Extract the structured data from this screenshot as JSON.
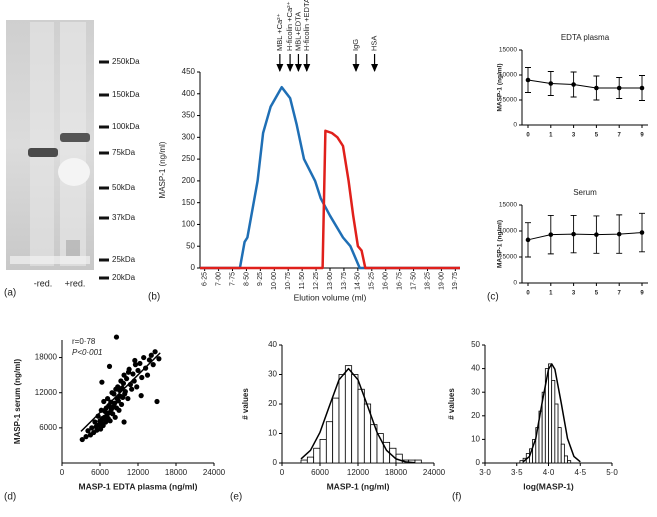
{
  "chart_data": [
    {
      "type": "gel",
      "panel_label": "(a)",
      "markers": [
        "250kDa",
        "150kDa",
        "100kDa",
        "75kDa",
        "50kDa",
        "37kDa",
        "25kDa",
        "20kDa"
      ],
      "lanes": [
        "-red.",
        "+red."
      ]
    },
    {
      "type": "line",
      "panel_label": "(b)",
      "y_label": "MASP-1 (ng/ml)",
      "x_label": "Elution volume (ml)",
      "xlim": [
        6,
        20
      ],
      "ylim": [
        0,
        450
      ],
      "xticks": [
        {
          "value": 6.25,
          "label": "6·25"
        },
        {
          "value": 7.0,
          "label": "7·00"
        },
        {
          "value": 7.75,
          "label": "7·75"
        },
        {
          "value": 8.5,
          "label": "8·50"
        },
        {
          "value": 9.25,
          "label": "9·25"
        },
        {
          "value": 10.0,
          "label": "10·00"
        },
        {
          "value": 10.75,
          "label": "10·75"
        },
        {
          "value": 11.5,
          "label": "11·50"
        },
        {
          "value": 12.25,
          "label": "12·25"
        },
        {
          "value": 13.0,
          "label": "13·00"
        },
        {
          "value": 13.75,
          "label": "13·75"
        },
        {
          "value": 14.5,
          "label": "14·50"
        },
        {
          "value": 15.25,
          "label": "15·25"
        },
        {
          "value": 16.0,
          "label": "16·00"
        },
        {
          "value": 16.75,
          "label": "16·75"
        },
        {
          "value": 17.5,
          "label": "17·50"
        },
        {
          "value": 18.25,
          "label": "18·25"
        },
        {
          "value": 19.0,
          "label": "19·00"
        },
        {
          "value": 19.75,
          "label": "19·75"
        }
      ],
      "yticks": [
        0,
        50,
        100,
        150,
        200,
        250,
        300,
        350,
        400,
        450
      ],
      "series": [
        {
          "color": "#1f6fb5",
          "x": [
            6,
            8.15,
            8.4,
            8.55,
            9.1,
            9.4,
            9.8,
            10.4,
            10.85,
            11.2,
            11.6,
            12.2,
            12.5,
            13.0,
            13.7,
            14.1,
            14.6,
            20
          ],
          "values": [
            0,
            0,
            60,
            70,
            200,
            310,
            370,
            415,
            390,
            330,
            250,
            200,
            160,
            120,
            70,
            50,
            0,
            0
          ]
        },
        {
          "color": "#e0201b",
          "x": [
            6,
            12.6,
            12.75,
            13.1,
            13.4,
            13.7,
            14.0,
            14.25,
            14.5,
            14.7,
            14.9,
            20
          ],
          "values": [
            0,
            0,
            315,
            310,
            300,
            280,
            200,
            120,
            50,
            40,
            0,
            0
          ]
        }
      ],
      "annotations": [
        {
          "text": "MBL +Ca²⁺",
          "x": 10.3
        },
        {
          "text": "H-ficolin +Ca²⁺",
          "x": 10.85
        },
        {
          "text": "MBL+EDTA",
          "x": 11.3
        },
        {
          "text": "H-ficolin +EDTA",
          "x": 11.75
        },
        {
          "text": "IgG",
          "x": 14.4
        },
        {
          "text": "HSA",
          "x": 15.4
        }
      ]
    },
    {
      "type": "errorbar",
      "title": "EDTA plasma",
      "y_label": "MASP-1 (ng/ml)",
      "categories": [
        "0",
        "1",
        "3",
        "5",
        "7",
        "9"
      ],
      "values": [
        9000,
        8300,
        8100,
        7400,
        7400,
        7400
      ],
      "errors": [
        2500,
        2400,
        2500,
        2400,
        2100,
        2500
      ],
      "ylim": [
        0,
        15000
      ],
      "yticks": [
        0,
        5000,
        10000,
        15000
      ]
    },
    {
      "type": "errorbar",
      "title": "Serum",
      "y_label": "MASP-1 (ng/ml)",
      "panel_label": "(c)",
      "categories": [
        "0",
        "1",
        "3",
        "5",
        "7",
        "9"
      ],
      "values": [
        8300,
        9300,
        9400,
        9300,
        9400,
        9700
      ],
      "errors": [
        3300,
        3700,
        3600,
        3600,
        3700,
        3700
      ],
      "ylim": [
        0,
        15000
      ],
      "yticks": [
        0,
        5000,
        10000,
        15000
      ]
    },
    {
      "type": "scatter",
      "panel_label": "(d)",
      "y_label": "MASP-1 serum (ng/ml)",
      "x_label": "MASP-1 EDTA plasma (ng/ml)",
      "annotations": [
        "r=0·78",
        "P<0·001"
      ],
      "xlim": [
        0,
        24000
      ],
      "ylim": [
        0,
        21000
      ],
      "xticks": [
        0,
        6000,
        12000,
        18000,
        24000
      ],
      "yticks": [
        6000,
        12000,
        18000
      ],
      "x": [
        3200,
        3800,
        4100,
        4500,
        4700,
        5000,
        5200,
        5400,
        5500,
        5700,
        5800,
        6000,
        6100,
        6200,
        6300,
        6400,
        6500,
        6600,
        6700,
        6800,
        6900,
        7000,
        7100,
        7200,
        7300,
        7400,
        7500,
        7600,
        7700,
        7800,
        7900,
        8000,
        8100,
        8200,
        8300,
        8400,
        8500,
        8600,
        8700,
        8800,
        8900,
        9000,
        9100,
        9200,
        9300,
        9400,
        9500,
        9600,
        9700,
        9800,
        9900,
        10000,
        10200,
        10400,
        10600,
        10800,
        11000,
        11200,
        11400,
        11600,
        11800,
        12000,
        12300,
        12600,
        12900,
        13200,
        13500,
        13800,
        14100,
        14400,
        14700,
        15000,
        15300,
        6300,
        7500,
        8600,
        9800,
        10500,
        11500,
        12500
      ],
      "values": [
        4000,
        4500,
        5500,
        4800,
        6000,
        5200,
        7000,
        6200,
        5600,
        8000,
        6500,
        7200,
        5800,
        9000,
        6800,
        7600,
        6400,
        10500,
        7800,
        8800,
        7000,
        9400,
        8200,
        11000,
        7600,
        9800,
        8600,
        7200,
        10400,
        9200,
        12000,
        8400,
        9600,
        11800,
        10200,
        7800,
        12600,
        9400,
        11000,
        13000,
        10600,
        9000,
        12400,
        11400,
        14000,
        10000,
        12800,
        11200,
        13600,
        15000,
        11800,
        12200,
        14400,
        11000,
        16000,
        13400,
        12600,
        15200,
        14000,
        16800,
        13000,
        15800,
        17000,
        14600,
        18000,
        16200,
        15000,
        17600,
        18400,
        16800,
        19000,
        10500,
        17800,
        13800,
        16500,
        21500,
        7000,
        15500,
        17500,
        11500
      ],
      "fit": {
        "x": [
          3000,
          15500
        ],
        "y": [
          5400,
          18800
        ]
      }
    },
    {
      "type": "histogram",
      "panel_label": "(e)",
      "y_label": "# values",
      "x_label": "MASP-1 (ng/ml)",
      "xlim": [
        0,
        24000
      ],
      "ylim": [
        0,
        40
      ],
      "xticks": [
        0,
        6000,
        12000,
        18000,
        24000
      ],
      "yticks": [
        0,
        10,
        20,
        30,
        40
      ],
      "bins": [
        3000,
        4000,
        5000,
        6000,
        7000,
        8000,
        9000,
        10000,
        11000,
        12000,
        13000,
        14000,
        15000,
        16000,
        17000,
        18000,
        19000,
        20000,
        21000,
        22000
      ],
      "values": [
        1,
        2,
        5,
        8,
        14,
        22,
        30,
        33,
        30,
        25,
        20,
        13,
        10,
        7,
        5,
        3,
        1,
        1,
        1
      ],
      "fit": {
        "x": [
          3000,
          4500,
          6000,
          7500,
          9000,
          10500,
          12000,
          13500,
          15000,
          16500,
          18000,
          19500,
          21000
        ],
        "y": [
          1.4,
          4.3,
          10.4,
          19.4,
          28.2,
          32,
          28.2,
          19.4,
          10.4,
          4.3,
          1.4,
          0.36,
          0.07
        ]
      }
    },
    {
      "type": "histogram",
      "panel_label": "(f)",
      "y_label": "# values",
      "x_label": "log(MASP-1)",
      "xlim": [
        3.0,
        5.0
      ],
      "ylim": [
        0,
        50
      ],
      "xticks": [
        {
          "value": 3.0,
          "label": "3·0"
        },
        {
          "value": 3.5,
          "label": "3·5"
        },
        {
          "value": 4.0,
          "label": "4·0"
        },
        {
          "value": 4.5,
          "label": "4·5"
        },
        {
          "value": 5.0,
          "label": "5·0"
        }
      ],
      "yticks": [
        0,
        10,
        20,
        30,
        40,
        50
      ],
      "bins": [
        3.55,
        3.6,
        3.65,
        3.7,
        3.75,
        3.8,
        3.85,
        3.9,
        3.95,
        4.0,
        4.05,
        4.1,
        4.15,
        4.2,
        4.25,
        4.3,
        4.35
      ],
      "values": [
        1,
        2,
        4,
        6,
        10,
        15,
        22,
        30,
        40,
        42,
        35,
        25,
        15,
        8,
        3,
        1
      ],
      "fit": {
        "x": [
          3.6,
          3.7,
          3.8,
          3.9,
          4.0,
          4.05,
          4.1,
          4.2,
          4.3,
          4.4,
          4.5
        ],
        "y": [
          0.5,
          2.8,
          10.4,
          25.5,
          39.7,
          42,
          39.7,
          25.5,
          10.4,
          2.8,
          0.5
        ]
      }
    }
  ]
}
